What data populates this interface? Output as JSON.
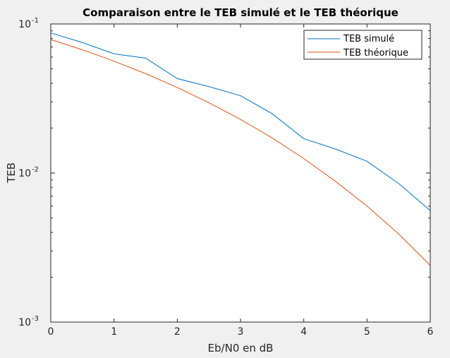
{
  "chart_data": {
    "type": "line",
    "title": "Comparaison entre le TEB simulé et le TEB théorique",
    "xlabel": "Eb/N0 en dB",
    "ylabel": "TEB",
    "xlim": [
      0,
      6
    ],
    "ylim": [
      0.001,
      0.1
    ],
    "yscale": "log",
    "grid": false,
    "legend_position": "top-right",
    "x_ticks": [
      "0",
      "1",
      "2",
      "3",
      "4",
      "5",
      "6"
    ],
    "y_ticks": [
      {
        "value": 0.001,
        "base": "10",
        "exp": "-3"
      },
      {
        "value": 0.01,
        "base": "10",
        "exp": "-2"
      },
      {
        "value": 0.1,
        "base": "10",
        "exp": "-1"
      }
    ],
    "series": [
      {
        "name": "TEB simulé",
        "color": "#0072bd",
        "x": [
          0,
          0.5,
          1,
          1.5,
          2,
          2.5,
          3,
          3.5,
          4,
          4.5,
          5,
          5.5,
          6
        ],
        "y": [
          0.087,
          0.075,
          0.063,
          0.059,
          0.043,
          0.038,
          0.033,
          0.025,
          0.017,
          0.0145,
          0.012,
          0.0085,
          0.0056
        ]
      },
      {
        "name": "TEB théorique",
        "color": "#d95319",
        "x": [
          0,
          0.5,
          1,
          1.5,
          2,
          2.5,
          3,
          3.5,
          4,
          4.5,
          5,
          5.5,
          6
        ],
        "y": [
          0.0786,
          0.0671,
          0.0563,
          0.0464,
          0.0375,
          0.0296,
          0.0229,
          0.0172,
          0.0125,
          0.0088,
          0.006,
          0.0039,
          0.0024
        ]
      }
    ]
  }
}
